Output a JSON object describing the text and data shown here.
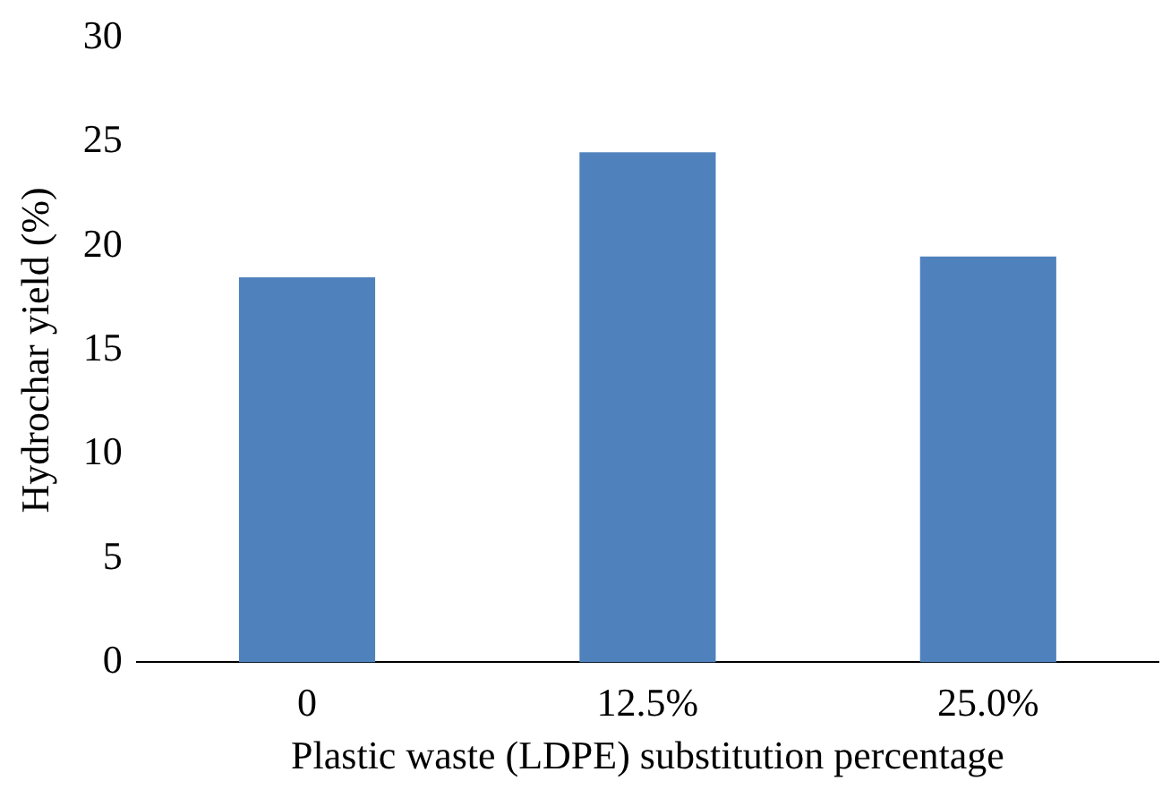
{
  "chart_data": {
    "type": "bar",
    "xlabel": "Plastic waste (LDPE) substitution percentage",
    "ylabel": "Hydrochar yield (%)",
    "categories": [
      "0",
      "12.5%",
      "25.0%"
    ],
    "values": [
      18.5,
      24.5,
      19.5
    ],
    "color": "#4f81bd",
    "ylim": [
      0,
      30
    ],
    "yticks": [
      0,
      5,
      10,
      15,
      20,
      25,
      30
    ],
    "grid": false,
    "legend": false
  }
}
